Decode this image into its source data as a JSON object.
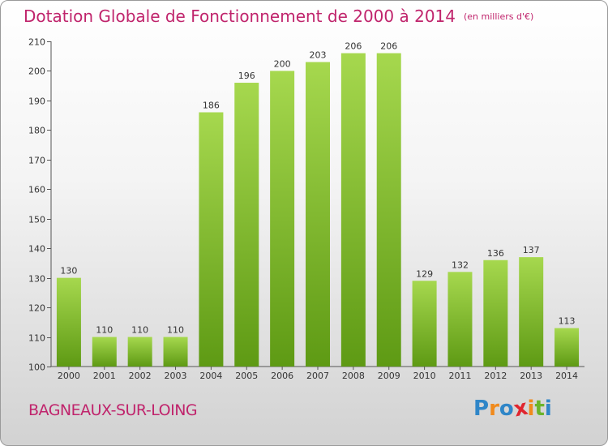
{
  "title": "Dotation Globale de Fonctionnement de 2000 à 2014",
  "unit_note": "(en milliers d'€)",
  "town": "BAGNEAUX-SUR-LOING",
  "logo": {
    "text": "Proxiti",
    "letters": [
      {
        "char": "P",
        "color": "#2f86c8"
      },
      {
        "char": "r",
        "color": "#f08a1c"
      },
      {
        "char": "o",
        "color": "#2f86c8"
      },
      {
        "char": "x",
        "color": "#e0262f"
      },
      {
        "char": "i",
        "color": "#f08a1c"
      },
      {
        "char": "t",
        "color": "#6ab42a"
      },
      {
        "char": "i",
        "color": "#2f86c8"
      }
    ]
  },
  "colors": {
    "title": "#c0246c",
    "bar_top": "#a6d84e",
    "bar_bottom": "#5e9a14"
  },
  "chart_data": {
    "type": "bar",
    "title": "Dotation Globale de Fonctionnement de 2000 à 2014",
    "subtitle": "(en milliers d'€)",
    "xlabel": "",
    "ylabel": "",
    "categories": [
      "2000",
      "2001",
      "2002",
      "2003",
      "2004",
      "2005",
      "2006",
      "2007",
      "2008",
      "2009",
      "2010",
      "2011",
      "2012",
      "2013",
      "2014"
    ],
    "values": [
      130,
      110,
      110,
      110,
      186,
      196,
      200,
      203,
      206,
      206,
      129,
      132,
      136,
      137,
      113
    ],
    "ylim": [
      100,
      210
    ],
    "yticks": [
      100,
      110,
      120,
      130,
      140,
      150,
      160,
      170,
      180,
      190,
      200,
      210
    ],
    "grid": false,
    "legend": "none"
  }
}
